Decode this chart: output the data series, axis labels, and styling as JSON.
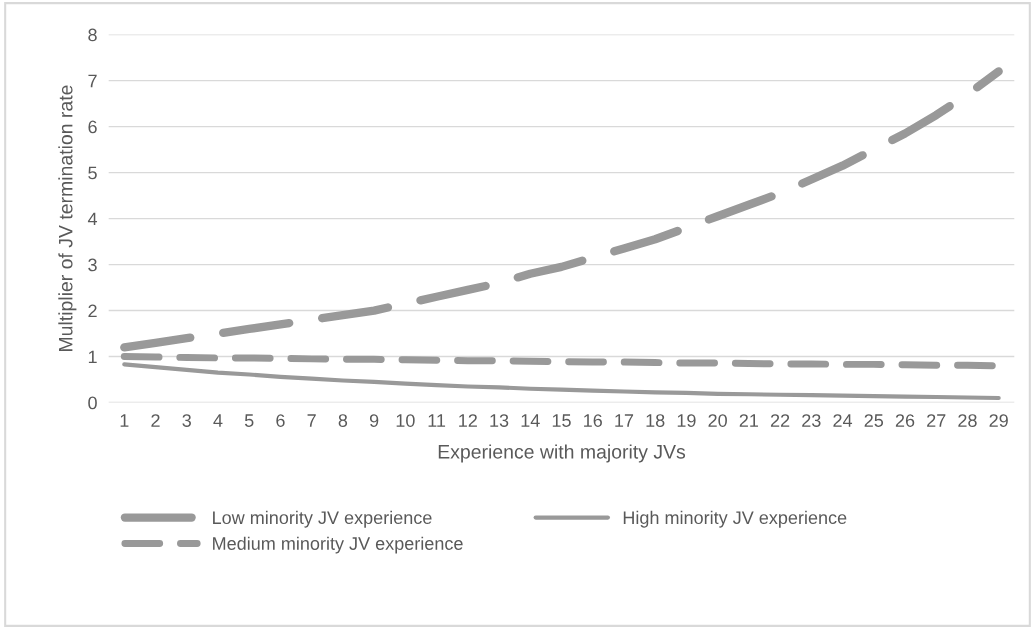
{
  "chart_data": {
    "type": "line",
    "xlabel": "Experience with majority JVs",
    "ylabel": "Multiplier of JV termination rate",
    "categories": [
      "1",
      "2",
      "3",
      "4",
      "5",
      "6",
      "7",
      "8",
      "9",
      "10",
      "11",
      "12",
      "13",
      "14",
      "15",
      "16",
      "17",
      "18",
      "19",
      "20",
      "21",
      "22",
      "23",
      "24",
      "25",
      "26",
      "27",
      "28",
      "29"
    ],
    "series": [
      {
        "name": "Low minority JV experience",
        "color": "#999999",
        "line_style": "dashed",
        "values": [
          1.2,
          1.3,
          1.4,
          1.5,
          1.6,
          1.7,
          1.8,
          1.9,
          2.0,
          2.15,
          2.3,
          2.45,
          2.6,
          2.8,
          2.95,
          3.15,
          3.35,
          3.55,
          3.8,
          4.05,
          4.3,
          4.55,
          4.85,
          5.15,
          5.5,
          5.85,
          6.25,
          6.7,
          7.2
        ]
      },
      {
        "name": "Medium minority JV experience",
        "color": "#999999",
        "line_style": "dashed",
        "values": [
          1.0,
          0.99,
          0.98,
          0.97,
          0.97,
          0.96,
          0.95,
          0.94,
          0.94,
          0.93,
          0.92,
          0.91,
          0.91,
          0.9,
          0.89,
          0.88,
          0.88,
          0.87,
          0.86,
          0.86,
          0.85,
          0.84,
          0.84,
          0.83,
          0.83,
          0.82,
          0.81,
          0.81,
          0.8
        ]
      },
      {
        "name": "High minority JV experience",
        "color": "#999999",
        "line_style": "solid",
        "values": [
          0.83,
          0.77,
          0.71,
          0.65,
          0.61,
          0.56,
          0.52,
          0.48,
          0.45,
          0.41,
          0.38,
          0.35,
          0.33,
          0.3,
          0.28,
          0.26,
          0.24,
          0.22,
          0.21,
          0.19,
          0.18,
          0.17,
          0.16,
          0.15,
          0.14,
          0.13,
          0.12,
          0.11,
          0.1
        ]
      }
    ],
    "ylim": [
      0,
      8
    ],
    "yticks": [
      0,
      1,
      2,
      3,
      4,
      5,
      6,
      7,
      8
    ],
    "grid": "y",
    "legend": "bottom",
    "marker": "none"
  }
}
